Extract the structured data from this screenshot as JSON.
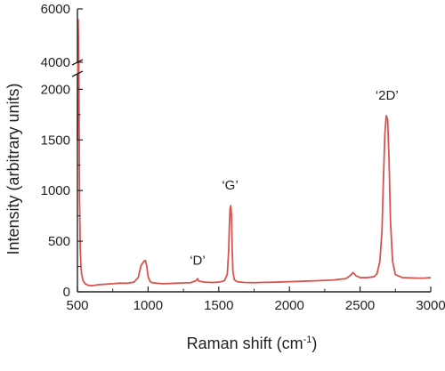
{
  "chart_data": {
    "type": "line",
    "xlabel": "Raman shift (cm",
    "xlabel_sup": "-1",
    "xlabel_close": ")",
    "ylabel": "Intensity (arbitrary units)",
    "xlim": [
      500,
      3000
    ],
    "ylim_lower": [
      0,
      2100
    ],
    "ylim_upper": [
      4000,
      6000
    ],
    "x_ticks": [
      500,
      1000,
      1500,
      2000,
      2500,
      3000
    ],
    "x_tick_labels": [
      "500",
      "1000",
      "1500",
      "2000",
      "2500",
      "3000"
    ],
    "y_ticks_lower": [
      0,
      500,
      1000,
      1500,
      2000
    ],
    "y_tick_labels_lower": [
      "0",
      "500",
      "1000",
      "1500",
      "2000"
    ],
    "y_ticks_upper": [
      4000,
      6000
    ],
    "y_tick_labels_upper": [
      "4000",
      "6000"
    ],
    "axis_break": true,
    "grid": false,
    "line_color": "#d9534f",
    "series": [
      {
        "x": [
          500,
          505,
          510,
          515,
          520,
          525,
          530,
          540,
          555,
          575,
          600,
          650,
          700,
          750,
          800,
          850,
          900,
          930,
          950,
          960,
          970,
          980,
          990,
          1000,
          1015,
          1030,
          1060,
          1100,
          1150,
          1200,
          1250,
          1300,
          1340,
          1350,
          1360,
          1400,
          1450,
          1500,
          1540,
          1560,
          1570,
          1575,
          1580,
          1585,
          1590,
          1595,
          1600,
          1610,
          1630,
          1680,
          1750,
          1800,
          1900,
          2000,
          2100,
          2200,
          2300,
          2400,
          2430,
          2450,
          2470,
          2500,
          2550,
          2600,
          2620,
          2640,
          2655,
          2665,
          2675,
          2685,
          2695,
          2705,
          2715,
          2730,
          2750,
          2800,
          2850,
          2900,
          2950,
          3000
        ],
        "y": [
          1500,
          5600,
          3000,
          900,
          420,
          250,
          170,
          110,
          80,
          65,
          60,
          70,
          75,
          80,
          85,
          85,
          95,
          140,
          260,
          280,
          300,
          310,
          260,
          150,
          100,
          90,
          85,
          80,
          82,
          85,
          88,
          90,
          110,
          130,
          105,
          95,
          92,
          95,
          110,
          170,
          400,
          650,
          820,
          850,
          750,
          420,
          200,
          120,
          100,
          92,
          90,
          92,
          95,
          100,
          105,
          110,
          115,
          130,
          160,
          190,
          160,
          140,
          140,
          150,
          180,
          300,
          600,
          1100,
          1550,
          1740,
          1700,
          1300,
          700,
          300,
          170,
          140,
          138,
          135,
          135,
          140
        ]
      }
    ],
    "annotations": [
      {
        "text": "‘D’",
        "x": 1350,
        "y": 270
      },
      {
        "text": "‘G’",
        "x": 1580,
        "y": 1010
      },
      {
        "text": "‘2D’",
        "x": 2690,
        "y": 1900
      }
    ]
  }
}
